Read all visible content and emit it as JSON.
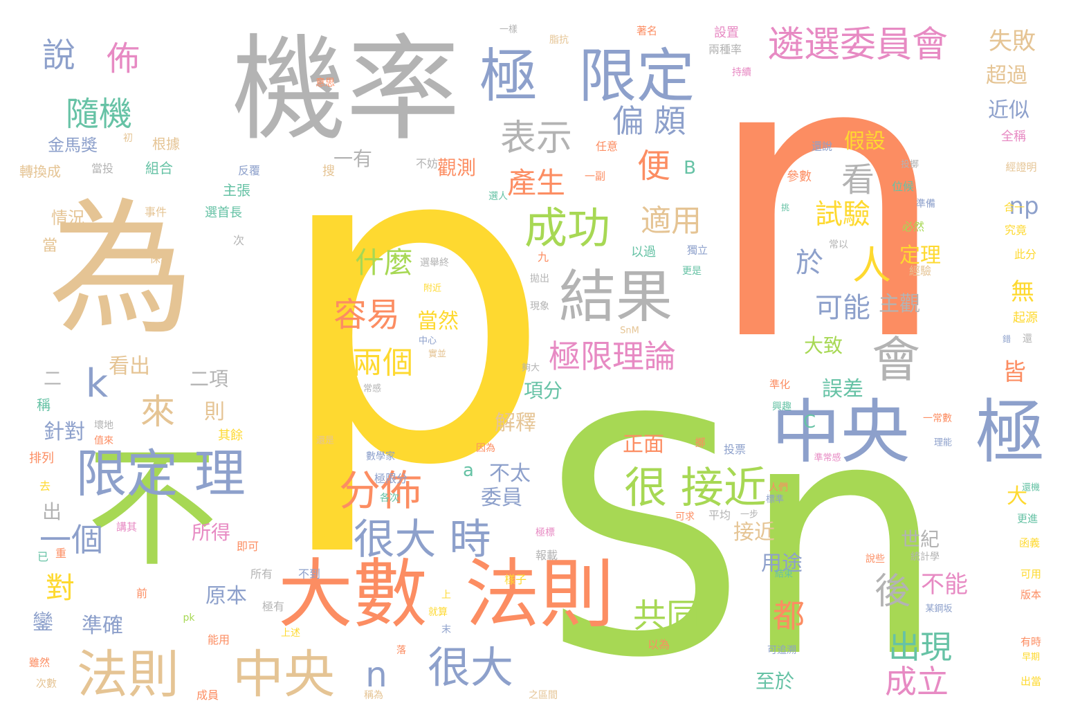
{
  "palette": {
    "yellow": "#fed930",
    "green": "#a7d854",
    "orange": "#fc8d62",
    "gray": "#b3b3b3",
    "tan": "#e5c494",
    "blue": "#8da0cb",
    "pink": "#e78ac3",
    "teal": "#66c2a5",
    "background": "#ffffff"
  },
  "words": [
    {
      "text": "p",
      "color": "yellow"
    },
    {
      "text": "n",
      "color": "orange"
    },
    {
      "text": "Sn",
      "color": "green"
    },
    {
      "text": "機率",
      "color": "gray"
    },
    {
      "text": "為",
      "color": "tan"
    },
    {
      "text": "不",
      "color": "green"
    },
    {
      "text": "大數",
      "color": "orange"
    },
    {
      "text": "法則",
      "color": "orange"
    },
    {
      "text": "中央",
      "color": "blue"
    },
    {
      "text": "極",
      "color": "blue"
    },
    {
      "text": "極",
      "color": "blue"
    },
    {
      "text": "限定",
      "color": "blue"
    },
    {
      "text": "遴選委員會",
      "color": "pink"
    },
    {
      "text": "結果",
      "color": "gray"
    },
    {
      "text": "會",
      "color": "gray"
    },
    {
      "text": "限定 理",
      "color": "blue"
    },
    {
      "text": "法則",
      "color": "tan"
    },
    {
      "text": "中央",
      "color": "tan"
    },
    {
      "text": "分佈",
      "color": "orange"
    },
    {
      "text": "很大 時",
      "color": "blue"
    },
    {
      "text": "很大",
      "color": "blue"
    },
    {
      "text": "成功",
      "color": "green"
    },
    {
      "text": "很 接近",
      "color": "green"
    },
    {
      "text": "表示",
      "color": "gray"
    },
    {
      "text": "說",
      "color": "blue"
    },
    {
      "text": "佈",
      "color": "pink"
    },
    {
      "text": "隨機",
      "color": "teal"
    },
    {
      "text": "偏 頗",
      "color": "blue"
    },
    {
      "text": "便",
      "color": "orange"
    },
    {
      "text": "看",
      "color": "gray"
    },
    {
      "text": "產生",
      "color": "orange"
    },
    {
      "text": "適用",
      "color": "tan"
    },
    {
      "text": "試驗",
      "color": "yellow"
    },
    {
      "text": "人",
      "color": "yellow"
    },
    {
      "text": "於",
      "color": "blue"
    },
    {
      "text": "可能",
      "color": "blue"
    },
    {
      "text": "什麼",
      "color": "green"
    },
    {
      "text": "容易",
      "color": "orange"
    },
    {
      "text": "當然",
      "color": "yellow"
    },
    {
      "text": "兩個",
      "color": "yellow"
    },
    {
      "text": "極限理論",
      "color": "pink"
    },
    {
      "text": "k",
      "color": "blue"
    },
    {
      "text": "來",
      "color": "tan"
    },
    {
      "text": "一個",
      "color": "blue"
    },
    {
      "text": "對",
      "color": "yellow"
    },
    {
      "text": "n",
      "color": "blue"
    },
    {
      "text": "共同",
      "color": "green"
    },
    {
      "text": "後",
      "color": "gray"
    },
    {
      "text": "都",
      "color": "orange"
    },
    {
      "text": "出現",
      "color": "teal"
    },
    {
      "text": "成立",
      "color": "pink"
    },
    {
      "text": "失敗",
      "color": "tan"
    },
    {
      "text": "超過",
      "color": "tan"
    },
    {
      "text": "近似",
      "color": "blue"
    },
    {
      "text": "假設",
      "color": "yellow"
    },
    {
      "text": "np",
      "color": "blue"
    },
    {
      "text": "定理",
      "color": "yellow"
    },
    {
      "text": "主觀",
      "color": "gray"
    },
    {
      "text": "無",
      "color": "yellow"
    },
    {
      "text": "大致",
      "color": "green"
    },
    {
      "text": "誤差",
      "color": "teal"
    },
    {
      "text": "皆",
      "color": "orange"
    },
    {
      "text": "C",
      "color": "teal"
    },
    {
      "text": "大",
      "color": "yellow"
    },
    {
      "text": "接近",
      "color": "tan"
    },
    {
      "text": "世紀",
      "color": "gray"
    },
    {
      "text": "用途",
      "color": "blue"
    },
    {
      "text": "不能",
      "color": "pink"
    },
    {
      "text": "至於",
      "color": "teal"
    },
    {
      "text": "一有",
      "color": "gray"
    },
    {
      "text": "觀測",
      "color": "orange"
    },
    {
      "text": "B",
      "color": "teal"
    },
    {
      "text": "項分",
      "color": "teal"
    },
    {
      "text": "解釋",
      "color": "tan"
    },
    {
      "text": "正面",
      "color": "orange"
    },
    {
      "text": "a",
      "color": "teal"
    },
    {
      "text": "不太",
      "color": "blue"
    },
    {
      "text": "委員",
      "color": "blue"
    },
    {
      "text": "數",
      "color": "yellow"
    },
    {
      "text": "所得",
      "color": "pink"
    },
    {
      "text": "原本",
      "color": "blue"
    },
    {
      "text": "準確",
      "color": "blue"
    },
    {
      "text": "鑾",
      "color": "blue"
    },
    {
      "text": "看出",
      "color": "tan"
    },
    {
      "text": "二項",
      "color": "gray"
    },
    {
      "text": "則",
      "color": "tan"
    },
    {
      "text": "二",
      "color": "gray"
    },
    {
      "text": "針對",
      "color": "blue"
    },
    {
      "text": "出",
      "color": "gray"
    },
    {
      "text": "金馬獎",
      "color": "blue"
    },
    {
      "text": "轉換成",
      "color": "tan"
    },
    {
      "text": "組合",
      "color": "teal"
    },
    {
      "text": "根據",
      "color": "tan"
    },
    {
      "text": "情況",
      "color": "tan"
    },
    {
      "text": "當",
      "color": "tan"
    },
    {
      "text": "稱",
      "color": "teal"
    },
    {
      "text": "排列",
      "color": "orange"
    },
    {
      "text": "其餘",
      "color": "yellow"
    },
    {
      "text": "選首長",
      "color": "teal"
    },
    {
      "text": "主張",
      "color": "teal"
    },
    {
      "text": "設置",
      "color": "pink"
    },
    {
      "text": "著名",
      "color": "orange"
    },
    {
      "text": "脂抗",
      "color": "tan"
    },
    {
      "text": "一樣",
      "color": "gray"
    },
    {
      "text": "兩種率",
      "color": "gray"
    },
    {
      "text": "持續",
      "color": "pink"
    },
    {
      "text": "全稱",
      "color": "pink"
    },
    {
      "text": "參數",
      "color": "orange"
    },
    {
      "text": "位候",
      "color": "teal"
    },
    {
      "text": "準備",
      "color": "blue"
    },
    {
      "text": "必然",
      "color": "green"
    },
    {
      "text": "以過",
      "color": "teal"
    },
    {
      "text": "獨立",
      "color": "blue"
    },
    {
      "text": "經驗",
      "color": "tan"
    },
    {
      "text": "此分",
      "color": "yellow"
    },
    {
      "text": "究竟",
      "color": "yellow"
    },
    {
      "text": "合一",
      "color": "yellow"
    },
    {
      "text": "起源",
      "color": "yellow"
    },
    {
      "text": "就算",
      "color": "yellow"
    },
    {
      "text": "平均",
      "color": "gray"
    },
    {
      "text": "投票",
      "color": "blue"
    },
    {
      "text": "數學家",
      "color": "blue"
    },
    {
      "text": "因為",
      "color": "orange"
    },
    {
      "text": "各次",
      "color": "teal"
    },
    {
      "text": "所有",
      "color": "gray"
    },
    {
      "text": "不到",
      "color": "blue"
    },
    {
      "text": "即可",
      "color": "orange"
    },
    {
      "text": "已",
      "color": "teal"
    },
    {
      "text": "重",
      "color": "orange"
    },
    {
      "text": "前",
      "color": "orange"
    },
    {
      "text": "pk",
      "color": "green"
    },
    {
      "text": "能用",
      "color": "orange"
    },
    {
      "text": "成員",
      "color": "orange"
    },
    {
      "text": "雖然",
      "color": "orange"
    },
    {
      "text": "次數",
      "color": "tan"
    },
    {
      "text": "稱為",
      "color": "tan"
    },
    {
      "text": "以為",
      "color": "orange"
    },
    {
      "text": "可追溯",
      "color": "blue"
    },
    {
      "text": "結束",
      "color": "teal"
    },
    {
      "text": "某鋼坂",
      "color": "blue"
    },
    {
      "text": "說些",
      "color": "orange"
    },
    {
      "text": "統計學",
      "color": "gray"
    },
    {
      "text": "有時",
      "color": "orange"
    },
    {
      "text": "早期",
      "color": "yellow"
    },
    {
      "text": "出當",
      "color": "yellow"
    },
    {
      "text": "可用",
      "color": "yellow"
    },
    {
      "text": "版本",
      "color": "orange"
    },
    {
      "text": "函義",
      "color": "yellow"
    },
    {
      "text": "更進",
      "color": "teal"
    },
    {
      "text": "還機",
      "color": "teal"
    },
    {
      "text": "準常感",
      "color": "pink"
    },
    {
      "text": "理能",
      "color": "blue"
    },
    {
      "text": "一常數",
      "color": "orange"
    },
    {
      "text": "興趣",
      "color": "teal"
    },
    {
      "text": "準化",
      "color": "orange"
    },
    {
      "text": "拋出",
      "color": "gray"
    },
    {
      "text": "現象",
      "color": "gray"
    },
    {
      "text": "更是",
      "color": "teal"
    },
    {
      "text": "附近",
      "color": "yellow"
    },
    {
      "text": "選舉終",
      "color": "gray"
    },
    {
      "text": "九",
      "color": "orange"
    },
    {
      "text": "SnM",
      "color": "tan"
    },
    {
      "text": "中心",
      "color": "blue"
    },
    {
      "text": "實並",
      "color": "tan"
    },
    {
      "text": "常感",
      "color": "gray"
    },
    {
      "text": "夠大",
      "color": "gray"
    },
    {
      "text": "值來",
      "color": "orange"
    },
    {
      "text": "壞地",
      "color": "gray"
    },
    {
      "text": "還是",
      "color": "tan"
    },
    {
      "text": "極限分",
      "color": "blue"
    },
    {
      "text": "去",
      "color": "yellow"
    },
    {
      "text": "講其",
      "color": "pink"
    },
    {
      "text": "極標",
      "color": "pink"
    },
    {
      "text": "報載",
      "color": "gray"
    },
    {
      "text": "樣子",
      "color": "yellow"
    },
    {
      "text": "上",
      "color": "yellow"
    },
    {
      "text": "極有",
      "color": "gray"
    },
    {
      "text": "末",
      "color": "blue"
    },
    {
      "text": "上述",
      "color": "yellow"
    },
    {
      "text": "落",
      "color": "orange"
    },
    {
      "text": "之區間",
      "color": "tan"
    },
    {
      "text": "一步",
      "color": "gray"
    },
    {
      "text": "標準",
      "color": "blue"
    },
    {
      "text": "人們",
      "color": "orange"
    },
    {
      "text": "可求",
      "color": "orange"
    },
    {
      "text": "擲",
      "color": "orange"
    },
    {
      "text": "不妨",
      "color": "gray"
    },
    {
      "text": "搜",
      "color": "tan"
    },
    {
      "text": "反覆",
      "color": "blue"
    },
    {
      "text": "任意",
      "color": "orange"
    },
    {
      "text": "一副",
      "color": "orange"
    },
    {
      "text": "選人",
      "color": "teal"
    },
    {
      "text": "常以",
      "color": "gray"
    },
    {
      "text": "投擲",
      "color": "gray"
    },
    {
      "text": "經證明",
      "color": "tan"
    },
    {
      "text": "還說",
      "color": "blue"
    },
    {
      "text": "挑",
      "color": "teal"
    },
    {
      "text": "還",
      "color": "gray"
    },
    {
      "text": "錯",
      "color": "blue"
    },
    {
      "text": "次",
      "color": "gray"
    },
    {
      "text": "保證",
      "color": "tan"
    },
    {
      "text": "事件",
      "color": "tan"
    },
    {
      "text": "當投",
      "color": "gray"
    },
    {
      "text": "初",
      "color": "tan"
    },
    {
      "text": "意思",
      "color": "orange"
    },
    {
      "text": "更明",
      "color": "tan"
    }
  ]
}
